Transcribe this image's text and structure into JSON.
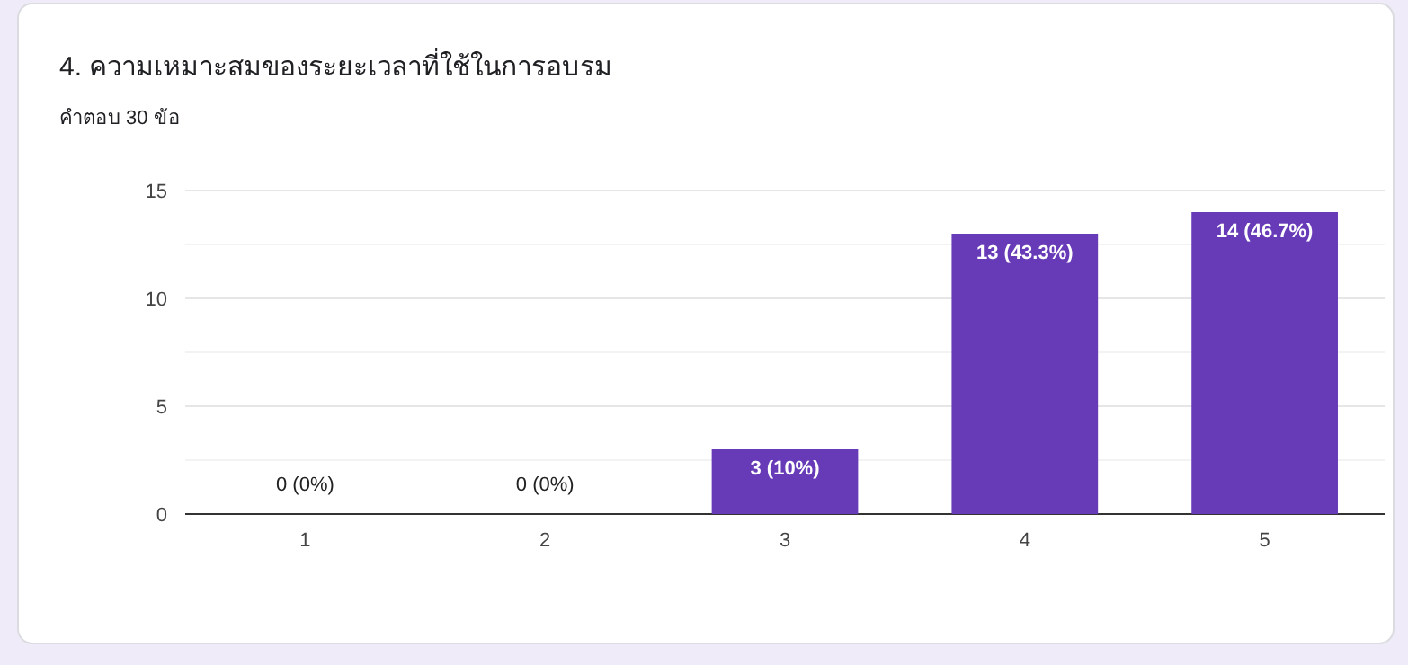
{
  "chart_data": {
    "type": "bar",
    "title": "4. ความเหมาะสมของระยะเวลาที่ใช้ในการอบรม",
    "subtitle": "คำตอบ 30 ข้อ",
    "categories": [
      "1",
      "2",
      "3",
      "4",
      "5"
    ],
    "values": [
      0,
      0,
      3,
      13,
      14
    ],
    "color": "#673ab7",
    "value_labels": [
      "0 (0%)",
      "0 (0%)",
      "3 (10%)",
      "13 (43.3%)",
      "14 (46.7%)"
    ],
    "ylim": [
      0,
      15
    ],
    "yticks": [
      0,
      {
        "value": 2.5,
        "label": null
      },
      5,
      {
        "value": 7.5,
        "label": null
      },
      10,
      {
        "value": 12.5,
        "label": null
      },
      15
    ],
    "grid": "y"
  }
}
